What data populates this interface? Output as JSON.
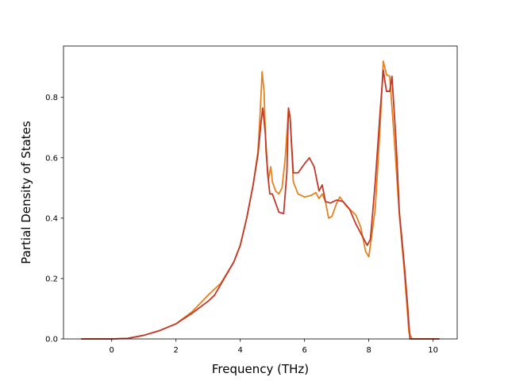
{
  "chart_data": {
    "type": "line",
    "title": "",
    "xlabel": "Frequency (THz)",
    "ylabel": "Partial Density of States",
    "xlim": [
      -1.5,
      10.75
    ],
    "ylim": [
      0.0,
      0.97
    ],
    "xticks": [
      0,
      2,
      4,
      6,
      8,
      10
    ],
    "yticks": [
      0.0,
      0.2,
      0.4,
      0.6,
      0.8
    ],
    "grid": false,
    "legend": "none",
    "series": [
      {
        "color": "#e6821e",
        "points": [
          [
            -0.95,
            0.0
          ],
          [
            0.0,
            0.0
          ],
          [
            0.5,
            0.002
          ],
          [
            1.0,
            0.012
          ],
          [
            1.5,
            0.028
          ],
          [
            2.0,
            0.05
          ],
          [
            2.5,
            0.09
          ],
          [
            3.0,
            0.145
          ],
          [
            3.4,
            0.185
          ],
          [
            3.8,
            0.255
          ],
          [
            4.0,
            0.31
          ],
          [
            4.2,
            0.4
          ],
          [
            4.4,
            0.51
          ],
          [
            4.55,
            0.62
          ],
          [
            4.62,
            0.75
          ],
          [
            4.68,
            0.885
          ],
          [
            4.74,
            0.82
          ],
          [
            4.8,
            0.62
          ],
          [
            4.88,
            0.53
          ],
          [
            4.95,
            0.57
          ],
          [
            5.0,
            0.52
          ],
          [
            5.1,
            0.49
          ],
          [
            5.2,
            0.48
          ],
          [
            5.3,
            0.5
          ],
          [
            5.4,
            0.6
          ],
          [
            5.5,
            0.76
          ],
          [
            5.55,
            0.74
          ],
          [
            5.65,
            0.52
          ],
          [
            5.8,
            0.48
          ],
          [
            6.0,
            0.47
          ],
          [
            6.2,
            0.475
          ],
          [
            6.35,
            0.485
          ],
          [
            6.45,
            0.465
          ],
          [
            6.55,
            0.48
          ],
          [
            6.65,
            0.455
          ],
          [
            6.75,
            0.4
          ],
          [
            6.85,
            0.405
          ],
          [
            7.0,
            0.45
          ],
          [
            7.1,
            0.47
          ],
          [
            7.3,
            0.44
          ],
          [
            7.6,
            0.41
          ],
          [
            7.75,
            0.37
          ],
          [
            7.9,
            0.29
          ],
          [
            8.0,
            0.272
          ],
          [
            8.2,
            0.43
          ],
          [
            8.35,
            0.7
          ],
          [
            8.45,
            0.92
          ],
          [
            8.55,
            0.875
          ],
          [
            8.65,
            0.87
          ],
          [
            8.8,
            0.65
          ],
          [
            8.95,
            0.41
          ],
          [
            9.1,
            0.23
          ],
          [
            9.25,
            0.02
          ],
          [
            9.35,
            0.0
          ],
          [
            10.2,
            0.0
          ]
        ]
      },
      {
        "color": "#c0392b",
        "points": [
          [
            -0.95,
            0.0
          ],
          [
            0.0,
            0.0
          ],
          [
            0.5,
            0.002
          ],
          [
            1.0,
            0.012
          ],
          [
            1.5,
            0.028
          ],
          [
            2.0,
            0.05
          ],
          [
            2.5,
            0.085
          ],
          [
            3.0,
            0.125
          ],
          [
            3.2,
            0.145
          ],
          [
            3.5,
            0.2
          ],
          [
            3.8,
            0.255
          ],
          [
            4.0,
            0.31
          ],
          [
            4.2,
            0.4
          ],
          [
            4.4,
            0.51
          ],
          [
            4.55,
            0.61
          ],
          [
            4.65,
            0.72
          ],
          [
            4.7,
            0.765
          ],
          [
            4.78,
            0.68
          ],
          [
            4.85,
            0.55
          ],
          [
            4.92,
            0.48
          ],
          [
            5.0,
            0.48
          ],
          [
            5.2,
            0.42
          ],
          [
            5.35,
            0.415
          ],
          [
            5.45,
            0.55
          ],
          [
            5.5,
            0.765
          ],
          [
            5.55,
            0.73
          ],
          [
            5.65,
            0.55
          ],
          [
            5.8,
            0.55
          ],
          [
            6.0,
            0.58
          ],
          [
            6.15,
            0.6
          ],
          [
            6.3,
            0.57
          ],
          [
            6.45,
            0.49
          ],
          [
            6.55,
            0.51
          ],
          [
            6.65,
            0.455
          ],
          [
            6.8,
            0.45
          ],
          [
            7.0,
            0.46
          ],
          [
            7.2,
            0.455
          ],
          [
            7.4,
            0.43
          ],
          [
            7.6,
            0.38
          ],
          [
            7.8,
            0.34
          ],
          [
            7.95,
            0.31
          ],
          [
            8.05,
            0.33
          ],
          [
            8.2,
            0.52
          ],
          [
            8.35,
            0.75
          ],
          [
            8.45,
            0.89
          ],
          [
            8.55,
            0.82
          ],
          [
            8.65,
            0.82
          ],
          [
            8.72,
            0.87
          ],
          [
            8.85,
            0.65
          ],
          [
            8.95,
            0.42
          ],
          [
            9.1,
            0.25
          ],
          [
            9.2,
            0.12
          ],
          [
            9.28,
            0.0
          ],
          [
            10.2,
            0.0
          ]
        ]
      }
    ]
  }
}
